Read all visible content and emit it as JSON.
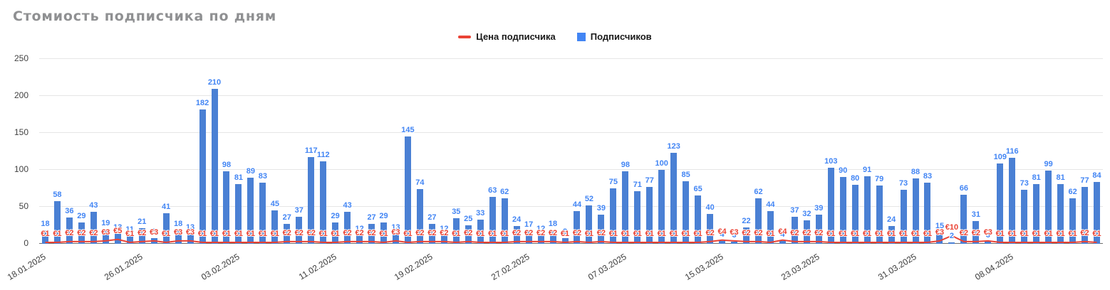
{
  "title": "Стомиость подписчика по дням",
  "legend": [
    {
      "label": "Цена подписчика",
      "color": "#ea4335",
      "type": "line"
    },
    {
      "label": "Подписчиков",
      "color": "#4285f4",
      "type": "bar"
    }
  ],
  "colors": {
    "bar": "#4a80d4",
    "bar_label": "#4285f4",
    "price_label": "#ea4335",
    "line": "#ea4335"
  },
  "chart_data": {
    "type": "bar",
    "title": "Стомиость подписчика по дням",
    "xlabel": "",
    "ylabel": "",
    "ylim": [
      0,
      250
    ],
    "yticks": [
      0,
      50,
      100,
      150,
      200,
      250
    ],
    "grid": true,
    "legend_position": "top-center",
    "x_ticks": [
      {
        "index": 0,
        "label": "18.01.2025"
      },
      {
        "index": 8,
        "label": "26.01.2025"
      },
      {
        "index": 16,
        "label": "03.02.2025"
      },
      {
        "index": 24,
        "label": "11.02.2025"
      },
      {
        "index": 32,
        "label": "19.02.2025"
      },
      {
        "index": 40,
        "label": "27.02.2025"
      },
      {
        "index": 48,
        "label": "07.03.2025"
      },
      {
        "index": 56,
        "label": "15.03.2025"
      },
      {
        "index": 64,
        "label": "23.03.2025"
      },
      {
        "index": 72,
        "label": "31.03.2025"
      },
      {
        "index": 80,
        "label": "08.04.2025"
      }
    ],
    "series": [
      {
        "name": "Подписчиков",
        "type": "bar",
        "color": "#4a80d4",
        "values": [
          18,
          58,
          36,
          29,
          43,
          19,
          13,
          11,
          21,
          8,
          41,
          18,
          13,
          182,
          210,
          98,
          81,
          89,
          83,
          45,
          27,
          37,
          117,
          112,
          29,
          43,
          12,
          27,
          29,
          13,
          145,
          74,
          27,
          12,
          35,
          25,
          33,
          63,
          62,
          24,
          17,
          12,
          18,
          8,
          44,
          52,
          39,
          75,
          98,
          71,
          77,
          100,
          123,
          85,
          65,
          40,
          4,
          3,
          22,
          62,
          44,
          4,
          37,
          32,
          39,
          103,
          90,
          80,
          91,
          79,
          24,
          73,
          88,
          83,
          15,
          2,
          66,
          31,
          3,
          109,
          116,
          73,
          81,
          99,
          81,
          62,
          77,
          84
        ]
      },
      {
        "name": "Цена подписчика",
        "type": "line",
        "color": "#ea4335",
        "label_prefix": "€",
        "values": [
          1,
          1,
          2,
          2,
          2,
          3,
          5,
          1,
          2,
          3,
          1,
          3,
          3,
          1,
          1,
          1,
          1,
          1,
          1,
          1,
          2,
          2,
          2,
          1,
          1,
          2,
          2,
          2,
          1,
          3,
          1,
          2,
          2,
          2,
          1,
          2,
          1,
          1,
          1,
          2,
          2,
          2,
          2,
          1,
          2,
          1,
          2,
          1,
          1,
          1,
          1,
          1,
          1,
          1,
          1,
          2,
          4,
          3,
          2,
          2,
          1,
          4,
          2,
          2,
          2,
          1,
          1,
          1,
          1,
          1,
          1,
          1,
          1,
          1,
          3,
          10,
          2,
          2,
          3,
          1,
          1,
          1,
          1,
          1,
          1,
          1,
          2,
          1
        ]
      }
    ]
  }
}
